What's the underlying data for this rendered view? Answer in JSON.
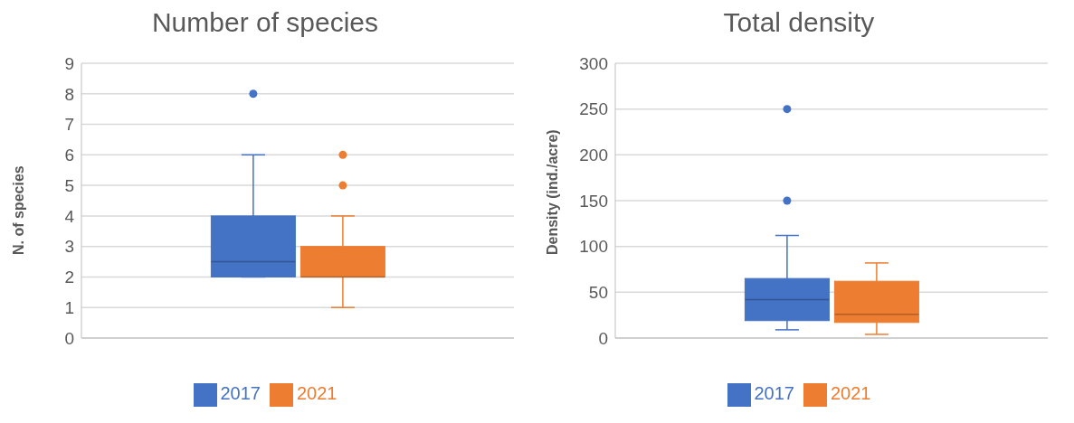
{
  "chart_data": [
    {
      "type": "box",
      "title": "Number of species",
      "ylabel": "N. of species",
      "categories": [
        null
      ],
      "ylim": [
        0,
        9
      ],
      "yticks": [
        0,
        1,
        2,
        3,
        4,
        5,
        6,
        7,
        8,
        9
      ],
      "grid": "y",
      "legend": "bottom",
      "series": [
        {
          "name": "2017",
          "color": "#4472c4",
          "boxes": [
            {
              "low": 2,
              "q1": 2,
              "median": 2.5,
              "q3": 4,
              "high": 6,
              "outliers": [
                8
              ]
            }
          ]
        },
        {
          "name": "2021",
          "color": "#ed7d31",
          "boxes": [
            {
              "low": 1,
              "q1": 2,
              "median": 2,
              "q3": 3,
              "high": 4,
              "outliers": [
                5,
                6
              ]
            }
          ]
        }
      ]
    },
    {
      "type": "box",
      "title": "Total density",
      "ylabel": "Density (ind./acre)",
      "categories": [
        null
      ],
      "ylim": [
        0,
        300
      ],
      "yticks": [
        0,
        50,
        100,
        150,
        200,
        250,
        300
      ],
      "grid": "y",
      "legend": "bottom",
      "series": [
        {
          "name": "2017",
          "color": "#4472c4",
          "boxes": [
            {
              "low": 9,
              "q1": 19,
              "median": 42,
              "q3": 65,
              "high": 112,
              "outliers": [
                150,
                250
              ]
            }
          ]
        },
        {
          "name": "2021",
          "color": "#ed7d31",
          "boxes": [
            {
              "low": 4,
              "q1": 17,
              "median": 26,
              "q3": 62,
              "high": 82
            }
          ]
        }
      ]
    }
  ]
}
